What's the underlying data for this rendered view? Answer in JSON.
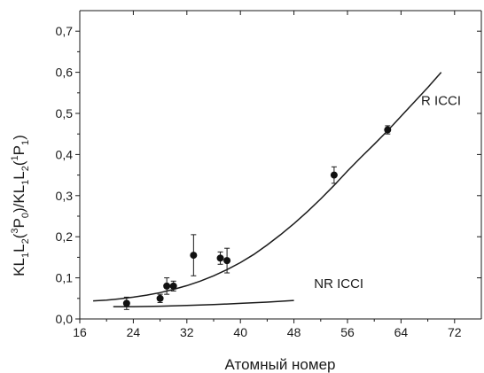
{
  "chart_data": {
    "type": "scatter",
    "xlabel": "Атомный номер",
    "ylabel": "KL1L2(3P0)/KL1L2(1P1)",
    "ylabel_parts": [
      {
        "t": "KL",
        "sub": "1"
      },
      {
        "t": "L",
        "sub": "2"
      },
      {
        "t": "(",
        "sup": "3"
      },
      {
        "t": "P",
        "sub": "0"
      },
      {
        "t": ")/KL",
        "sub": "1"
      },
      {
        "t": "L",
        "sub": "2"
      },
      {
        "t": "(",
        "sup": "1"
      },
      {
        "t": "P",
        "sub": "1"
      },
      {
        "t": ")"
      }
    ],
    "xlim": [
      16,
      76
    ],
    "ylim": [
      0.0,
      0.75
    ],
    "x_ticks": [
      16,
      24,
      32,
      40,
      48,
      56,
      64,
      72
    ],
    "x_tick_labels": [
      "16",
      "24",
      "32",
      "40",
      "48",
      "56",
      "64",
      "72"
    ],
    "y_ticks": [
      0.0,
      0.1,
      0.2,
      0.3,
      0.4,
      0.5,
      0.6,
      0.7
    ],
    "y_tick_labels": [
      "0,0",
      "0,1",
      "0,2",
      "0,3",
      "0,4",
      "0,5",
      "0,6",
      "0,7"
    ],
    "grid": false,
    "points": [
      {
        "x": 23,
        "y": 0.038,
        "err": 0.015
      },
      {
        "x": 28,
        "y": 0.05,
        "err": 0.01
      },
      {
        "x": 29,
        "y": 0.08,
        "err": 0.02
      },
      {
        "x": 30,
        "y": 0.08,
        "err": 0.012
      },
      {
        "x": 33,
        "y": 0.155,
        "err": 0.05
      },
      {
        "x": 37,
        "y": 0.148,
        "err": 0.015
      },
      {
        "x": 38,
        "y": 0.142,
        "err": 0.03
      },
      {
        "x": 54,
        "y": 0.35,
        "err": 0.02
      },
      {
        "x": 62,
        "y": 0.46,
        "err": 0.01
      }
    ],
    "series": [
      {
        "name": "R ICCI",
        "x": [
          18,
          20,
          22,
          24,
          26,
          28,
          30,
          32,
          34,
          36,
          38,
          40,
          42,
          44,
          46,
          48,
          50,
          52,
          54,
          56,
          58,
          60,
          62,
          64,
          66,
          68,
          70
        ],
        "y": [
          0.044,
          0.046,
          0.049,
          0.053,
          0.058,
          0.064,
          0.072,
          0.081,
          0.092,
          0.105,
          0.12,
          0.137,
          0.157,
          0.18,
          0.205,
          0.232,
          0.261,
          0.292,
          0.325,
          0.36,
          0.393,
          0.425,
          0.458,
          0.493,
          0.528,
          0.563,
          0.6
        ]
      },
      {
        "name": "NR ICCI",
        "x": [
          21,
          24,
          28,
          32,
          36,
          40,
          44,
          48
        ],
        "y": [
          0.03,
          0.03,
          0.031,
          0.033,
          0.035,
          0.038,
          0.041,
          0.045
        ]
      }
    ]
  }
}
